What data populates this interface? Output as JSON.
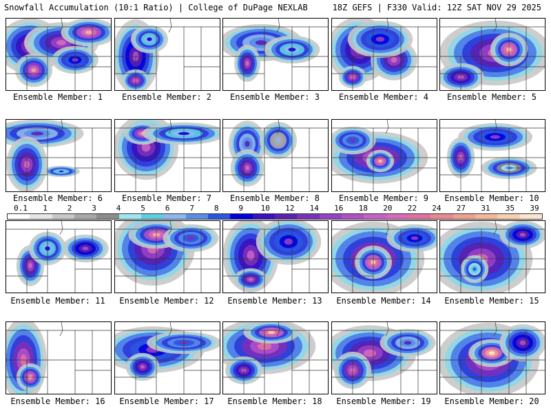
{
  "header": {
    "left": "Snowfall Accumulation (10:1 Ratio) | College of DuPage NEXLAB",
    "right": "18Z GEFS | F330 Valid: 12Z SAT NOV 29 2025"
  },
  "colorbar": {
    "labels": [
      "0.1",
      "1",
      "2",
      "3",
      "4",
      "5",
      "6",
      "7",
      "8",
      "9",
      "10",
      "12",
      "14",
      "16",
      "18",
      "20",
      "22",
      "24",
      "27",
      "31",
      "35",
      "39"
    ],
    "colors": [
      "#ffffff",
      "#e6e6e6",
      "#c8c8c8",
      "#a8a8a8",
      "#8c8c8c",
      "#9fe8f0",
      "#5ccfe0",
      "#8cb8f0",
      "#5a8ce8",
      "#2a56e0",
      "#0000dd",
      "#3a10c0",
      "#5a20b0",
      "#7a30b8",
      "#9640c4",
      "#b050c8",
      "#c860c8",
      "#d86ab8",
      "#e070a0",
      "#e88890",
      "#f0a090",
      "#f4b898",
      "#f8d0b0",
      "#fce4d0"
    ]
  },
  "members": [
    {
      "label": "Ensemble Member: 1"
    },
    {
      "label": "Ensemble Member: 2"
    },
    {
      "label": "Ensemble Member: 3"
    },
    {
      "label": "Ensemble Member: 4"
    },
    {
      "label": "Ensemble Member: 5"
    },
    {
      "label": "Ensemble Member: 6"
    },
    {
      "label": "Ensemble Member: 7"
    },
    {
      "label": "Ensemble Member: 8"
    },
    {
      "label": "Ensemble Member: 9"
    },
    {
      "label": "Ensemble Member: 10"
    },
    {
      "label": "Ensemble Member: 11"
    },
    {
      "label": "Ensemble Member: 12"
    },
    {
      "label": "Ensemble Member: 13"
    },
    {
      "label": "Ensemble Member: 14"
    },
    {
      "label": "Ensemble Member: 15"
    },
    {
      "label": "Ensemble Member: 16"
    },
    {
      "label": "Ensemble Member: 17"
    },
    {
      "label": "Ensemble Member: 18"
    },
    {
      "label": "Ensemble Member: 19"
    },
    {
      "label": "Ensemble Member: 20"
    }
  ]
}
